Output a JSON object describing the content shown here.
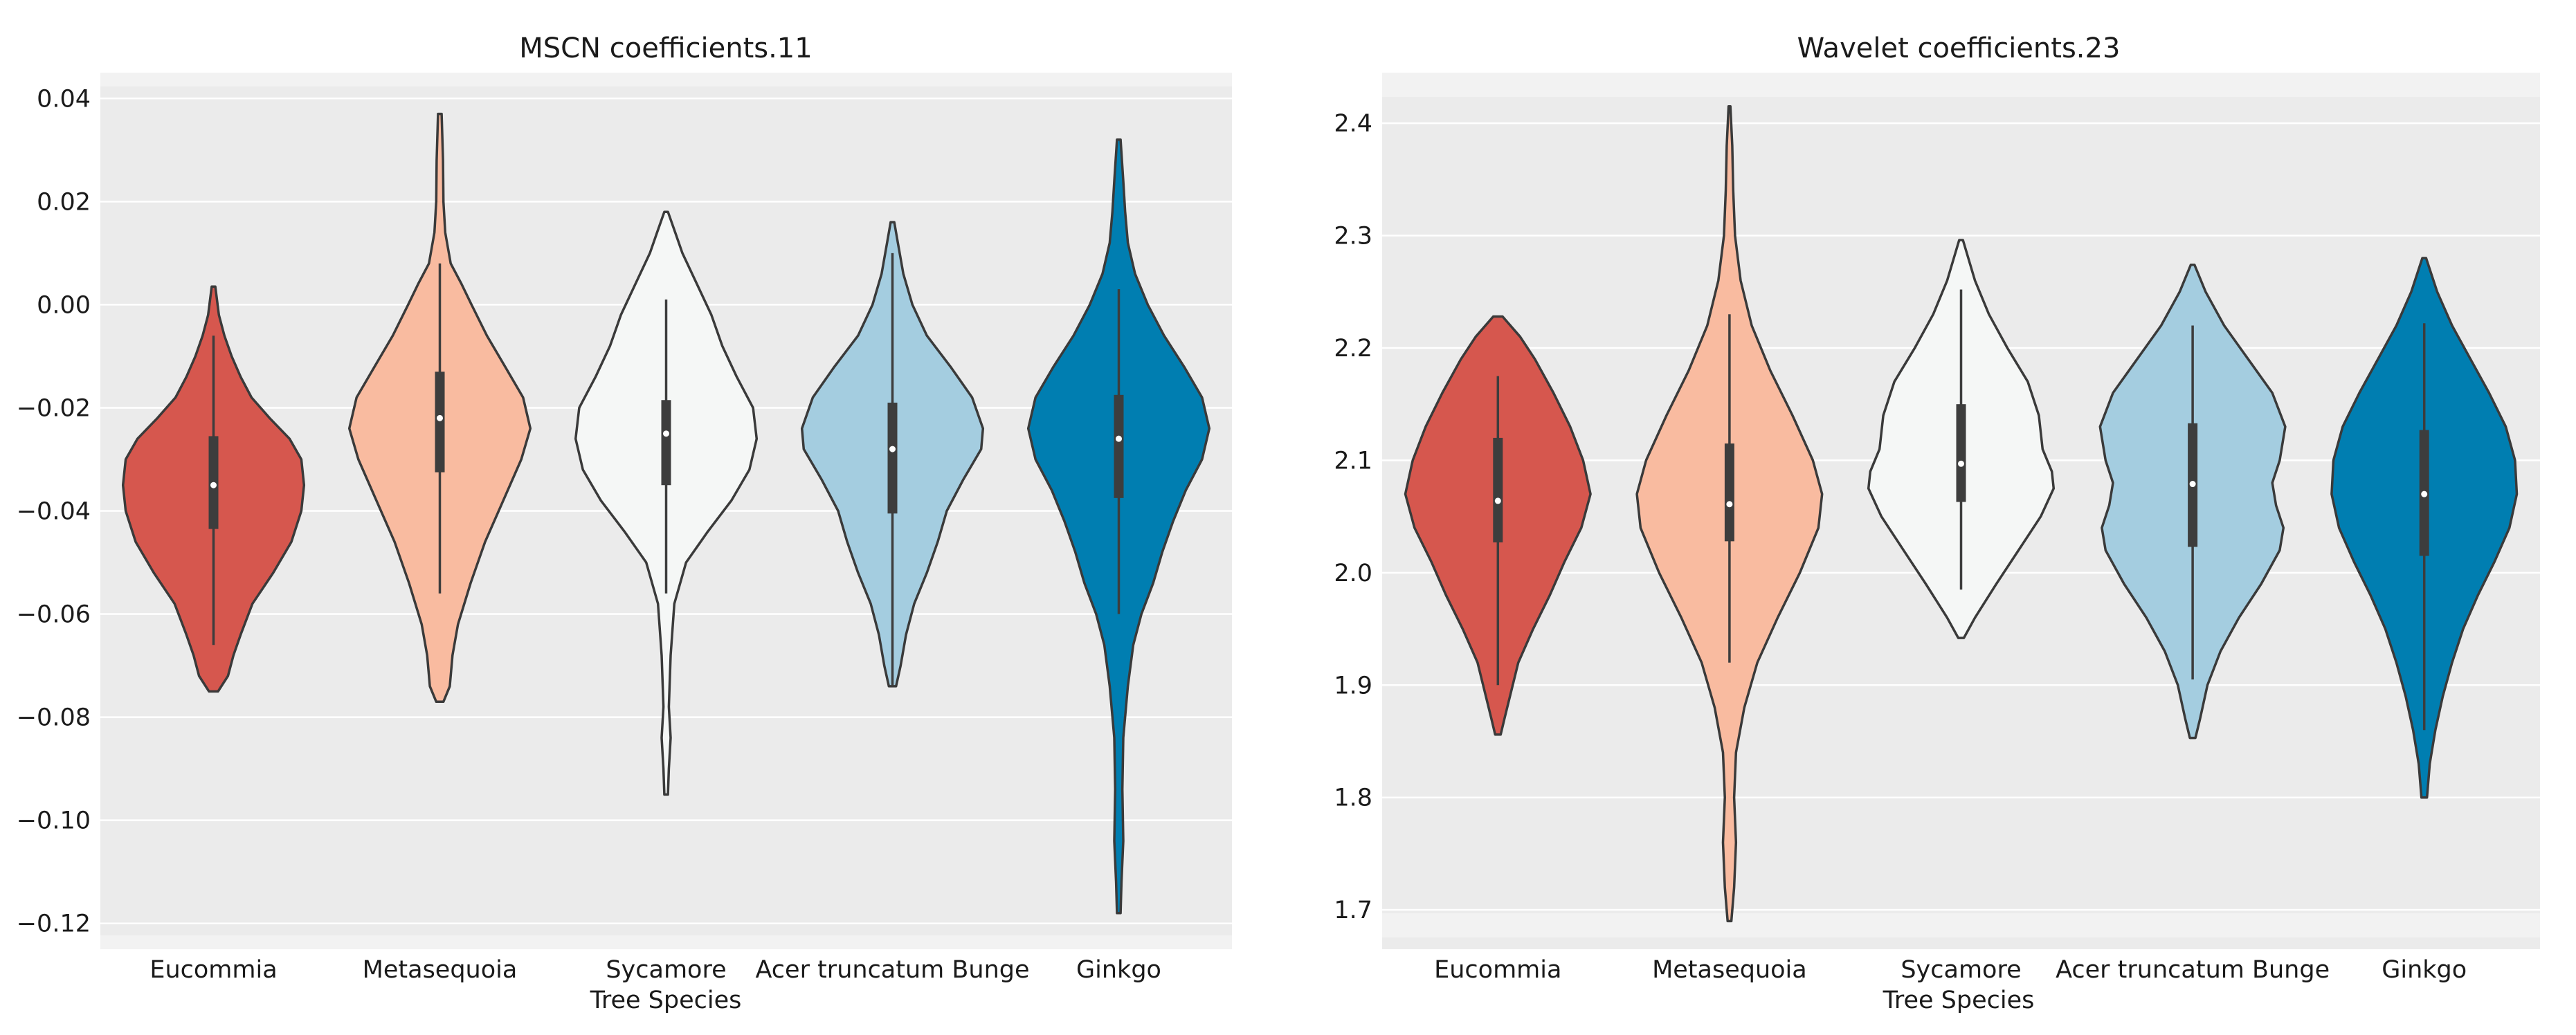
{
  "chart_data": [
    {
      "type": "violin",
      "title": "MSCN coefficients.11",
      "xlabel": "Tree Species",
      "ylabel": "",
      "ylim": [
        -0.125,
        0.045
      ],
      "yticks": [
        0.04,
        0.02,
        0.0,
        -0.02,
        -0.04,
        -0.06,
        -0.08,
        -0.1,
        -0.12
      ],
      "ytick_labels": [
        "0.04",
        "0.02",
        "0.00",
        "−0.02",
        "−0.04",
        "−0.06",
        "−0.08",
        "−0.10",
        "−0.12"
      ],
      "categories": [
        "Eucommia",
        "Metasequoia",
        "Sycamore",
        "Acer truncatum Bunge",
        "Ginkgo"
      ],
      "colors": [
        "#d6574e",
        "#f9bba0",
        "#f5f7f6",
        "#a4cde0",
        "#007eb1"
      ],
      "series": [
        {
          "name": "Eucommia",
          "min": -0.075,
          "q1": -0.0435,
          "median": -0.035,
          "q3": -0.0255,
          "max": 0.0035,
          "whisker_low": -0.066,
          "whisker_high": -0.006,
          "profile": [
            [
              -0.075,
              0.05
            ],
            [
              -0.072,
              0.16
            ],
            [
              -0.068,
              0.22
            ],
            [
              -0.064,
              0.3
            ],
            [
              -0.058,
              0.43
            ],
            [
              -0.052,
              0.66
            ],
            [
              -0.046,
              0.86
            ],
            [
              -0.04,
              0.97
            ],
            [
              -0.035,
              1.0
            ],
            [
              -0.03,
              0.97
            ],
            [
              -0.026,
              0.84
            ],
            [
              -0.022,
              0.62
            ],
            [
              -0.018,
              0.42
            ],
            [
              -0.014,
              0.3
            ],
            [
              -0.01,
              0.2
            ],
            [
              -0.006,
              0.12
            ],
            [
              -0.002,
              0.06
            ],
            [
              0.0035,
              0.02
            ]
          ]
        },
        {
          "name": "Metasequoia",
          "min": -0.077,
          "q1": -0.0325,
          "median": -0.022,
          "q3": -0.013,
          "max": 0.037,
          "whisker_low": -0.056,
          "whisker_high": 0.008,
          "profile": [
            [
              -0.077,
              0.04
            ],
            [
              -0.074,
              0.11
            ],
            [
              -0.068,
              0.14
            ],
            [
              -0.062,
              0.2
            ],
            [
              -0.054,
              0.34
            ],
            [
              -0.046,
              0.5
            ],
            [
              -0.038,
              0.7
            ],
            [
              -0.03,
              0.9
            ],
            [
              -0.024,
              1.0
            ],
            [
              -0.018,
              0.92
            ],
            [
              -0.012,
              0.72
            ],
            [
              -0.006,
              0.52
            ],
            [
              0.0,
              0.35
            ],
            [
              0.004,
              0.24
            ],
            [
              0.008,
              0.12
            ],
            [
              0.014,
              0.06
            ],
            [
              0.02,
              0.04
            ],
            [
              0.028,
              0.035
            ],
            [
              0.037,
              0.02
            ]
          ]
        },
        {
          "name": "Sycamore",
          "min": -0.095,
          "q1": -0.035,
          "median": -0.025,
          "q3": -0.0185,
          "max": 0.018,
          "whisker_low": -0.056,
          "whisker_high": 0.001,
          "profile": [
            [
              -0.095,
              0.02
            ],
            [
              -0.09,
              0.03
            ],
            [
              -0.084,
              0.05
            ],
            [
              -0.078,
              0.03
            ],
            [
              -0.068,
              0.05
            ],
            [
              -0.058,
              0.09
            ],
            [
              -0.05,
              0.22
            ],
            [
              -0.044,
              0.46
            ],
            [
              -0.038,
              0.72
            ],
            [
              -0.032,
              0.92
            ],
            [
              -0.026,
              1.0
            ],
            [
              -0.02,
              0.96
            ],
            [
              -0.014,
              0.78
            ],
            [
              -0.008,
              0.62
            ],
            [
              -0.002,
              0.5
            ],
            [
              0.004,
              0.34
            ],
            [
              0.01,
              0.18
            ],
            [
              0.014,
              0.1
            ],
            [
              0.018,
              0.02
            ]
          ]
        },
        {
          "name": "Acer truncatum Bunge",
          "min": -0.074,
          "q1": -0.0405,
          "median": -0.028,
          "q3": -0.019,
          "max": 0.016,
          "whisker_low": -0.074,
          "whisker_high": 0.01,
          "profile": [
            [
              -0.074,
              0.04
            ],
            [
              -0.07,
              0.09
            ],
            [
              -0.064,
              0.15
            ],
            [
              -0.058,
              0.24
            ],
            [
              -0.052,
              0.38
            ],
            [
              -0.046,
              0.5
            ],
            [
              -0.04,
              0.6
            ],
            [
              -0.034,
              0.78
            ],
            [
              -0.028,
              0.98
            ],
            [
              -0.024,
              1.0
            ],
            [
              -0.018,
              0.88
            ],
            [
              -0.012,
              0.64
            ],
            [
              -0.006,
              0.38
            ],
            [
              0.0,
              0.22
            ],
            [
              0.006,
              0.12
            ],
            [
              0.012,
              0.06
            ],
            [
              0.016,
              0.02
            ]
          ]
        },
        {
          "name": "Ginkgo",
          "min": -0.118,
          "q1": -0.0375,
          "median": -0.026,
          "q3": -0.0175,
          "max": 0.032,
          "whisker_low": -0.06,
          "whisker_high": 0.003,
          "profile": [
            [
              -0.118,
              0.02
            ],
            [
              -0.112,
              0.03
            ],
            [
              -0.104,
              0.05
            ],
            [
              -0.094,
              0.04
            ],
            [
              -0.084,
              0.05
            ],
            [
              -0.074,
              0.1
            ],
            [
              -0.066,
              0.16
            ],
            [
              -0.06,
              0.25
            ],
            [
              -0.054,
              0.38
            ],
            [
              -0.048,
              0.48
            ],
            [
              -0.042,
              0.6
            ],
            [
              -0.036,
              0.74
            ],
            [
              -0.03,
              0.92
            ],
            [
              -0.024,
              1.0
            ],
            [
              -0.018,
              0.92
            ],
            [
              -0.012,
              0.72
            ],
            [
              -0.006,
              0.5
            ],
            [
              0.0,
              0.32
            ],
            [
              0.006,
              0.18
            ],
            [
              0.012,
              0.1
            ],
            [
              0.018,
              0.07
            ],
            [
              0.024,
              0.05
            ],
            [
              0.032,
              0.02
            ]
          ]
        }
      ]
    },
    {
      "type": "violin",
      "title": "Wavelet coefficients.23",
      "xlabel": "Tree Species",
      "ylabel": "",
      "ylim": [
        1.665,
        2.445
      ],
      "yticks": [
        2.4,
        2.3,
        2.2,
        2.1,
        2.0,
        1.9,
        1.8,
        1.7
      ],
      "ytick_labels": [
        "2.4",
        "2.3",
        "2.2",
        "2.1",
        "2.0",
        "1.9",
        "1.8",
        "1.7"
      ],
      "categories": [
        "Eucommia",
        "Metasequoia",
        "Sycamore",
        "Acer truncatum Bunge",
        "Ginkgo"
      ],
      "colors": [
        "#d6574e",
        "#f9bba0",
        "#f5f7f6",
        "#a4cde0",
        "#007eb1"
      ],
      "series": [
        {
          "name": "Eucommia",
          "min": 1.856,
          "q1": 2.027,
          "median": 2.064,
          "q3": 2.12,
          "max": 2.228,
          "whisker_low": 1.9,
          "whisker_high": 2.175,
          "profile": [
            [
              1.856,
              0.03
            ],
            [
              1.87,
              0.07
            ],
            [
              1.89,
              0.13
            ],
            [
              1.92,
              0.22
            ],
            [
              1.95,
              0.38
            ],
            [
              1.98,
              0.56
            ],
            [
              2.01,
              0.72
            ],
            [
              2.04,
              0.9
            ],
            [
              2.07,
              1.0
            ],
            [
              2.1,
              0.92
            ],
            [
              2.13,
              0.78
            ],
            [
              2.16,
              0.6
            ],
            [
              2.19,
              0.4
            ],
            [
              2.21,
              0.24
            ],
            [
              2.228,
              0.05
            ]
          ]
        },
        {
          "name": "Metasequoia",
          "min": 1.69,
          "q1": 2.028,
          "median": 2.061,
          "q3": 2.115,
          "max": 2.415,
          "whisker_low": 1.92,
          "whisker_high": 2.23,
          "profile": [
            [
              1.69,
              0.02
            ],
            [
              1.72,
              0.05
            ],
            [
              1.76,
              0.07
            ],
            [
              1.8,
              0.05
            ],
            [
              1.84,
              0.07
            ],
            [
              1.88,
              0.16
            ],
            [
              1.92,
              0.3
            ],
            [
              1.96,
              0.52
            ],
            [
              2.0,
              0.76
            ],
            [
              2.04,
              0.96
            ],
            [
              2.07,
              1.0
            ],
            [
              2.1,
              0.9
            ],
            [
              2.14,
              0.68
            ],
            [
              2.18,
              0.44
            ],
            [
              2.22,
              0.24
            ],
            [
              2.26,
              0.12
            ],
            [
              2.3,
              0.06
            ],
            [
              2.34,
              0.04
            ],
            [
              2.38,
              0.03
            ],
            [
              2.415,
              0.01
            ]
          ]
        },
        {
          "name": "Sycamore",
          "min": 1.942,
          "q1": 2.063,
          "median": 2.097,
          "q3": 2.15,
          "max": 2.296,
          "whisker_low": 1.985,
          "whisker_high": 2.252,
          "profile": [
            [
              1.942,
              0.03
            ],
            [
              1.96,
              0.15
            ],
            [
              1.99,
              0.38
            ],
            [
              2.02,
              0.62
            ],
            [
              2.05,
              0.86
            ],
            [
              2.075,
              1.0
            ],
            [
              2.09,
              0.98
            ],
            [
              2.11,
              0.88
            ],
            [
              2.14,
              0.84
            ],
            [
              2.17,
              0.72
            ],
            [
              2.2,
              0.5
            ],
            [
              2.23,
              0.3
            ],
            [
              2.26,
              0.15
            ],
            [
              2.296,
              0.02
            ]
          ]
        },
        {
          "name": "Acer truncatum Bunge",
          "min": 1.853,
          "q1": 2.023,
          "median": 2.079,
          "q3": 2.133,
          "max": 2.274,
          "whisker_low": 1.905,
          "whisker_high": 2.22,
          "profile": [
            [
              1.853,
              0.03
            ],
            [
              1.87,
              0.08
            ],
            [
              1.9,
              0.16
            ],
            [
              1.93,
              0.3
            ],
            [
              1.96,
              0.5
            ],
            [
              1.99,
              0.74
            ],
            [
              2.02,
              0.94
            ],
            [
              2.04,
              0.98
            ],
            [
              2.06,
              0.9
            ],
            [
              2.08,
              0.86
            ],
            [
              2.1,
              0.94
            ],
            [
              2.13,
              1.0
            ],
            [
              2.16,
              0.86
            ],
            [
              2.19,
              0.6
            ],
            [
              2.22,
              0.34
            ],
            [
              2.25,
              0.14
            ],
            [
              2.274,
              0.02
            ]
          ]
        },
        {
          "name": "Ginkgo",
          "min": 1.8,
          "q1": 2.015,
          "median": 2.07,
          "q3": 2.127,
          "max": 2.28,
          "whisker_low": 1.86,
          "whisker_high": 2.222,
          "profile": [
            [
              1.8,
              0.03
            ],
            [
              1.83,
              0.06
            ],
            [
              1.86,
              0.12
            ],
            [
              1.89,
              0.2
            ],
            [
              1.92,
              0.3
            ],
            [
              1.95,
              0.42
            ],
            [
              1.98,
              0.58
            ],
            [
              2.01,
              0.76
            ],
            [
              2.04,
              0.92
            ],
            [
              2.07,
              1.0
            ],
            [
              2.1,
              0.98
            ],
            [
              2.13,
              0.88
            ],
            [
              2.16,
              0.7
            ],
            [
              2.19,
              0.5
            ],
            [
              2.22,
              0.3
            ],
            [
              2.25,
              0.14
            ],
            [
              2.28,
              0.02
            ]
          ]
        }
      ]
    }
  ]
}
